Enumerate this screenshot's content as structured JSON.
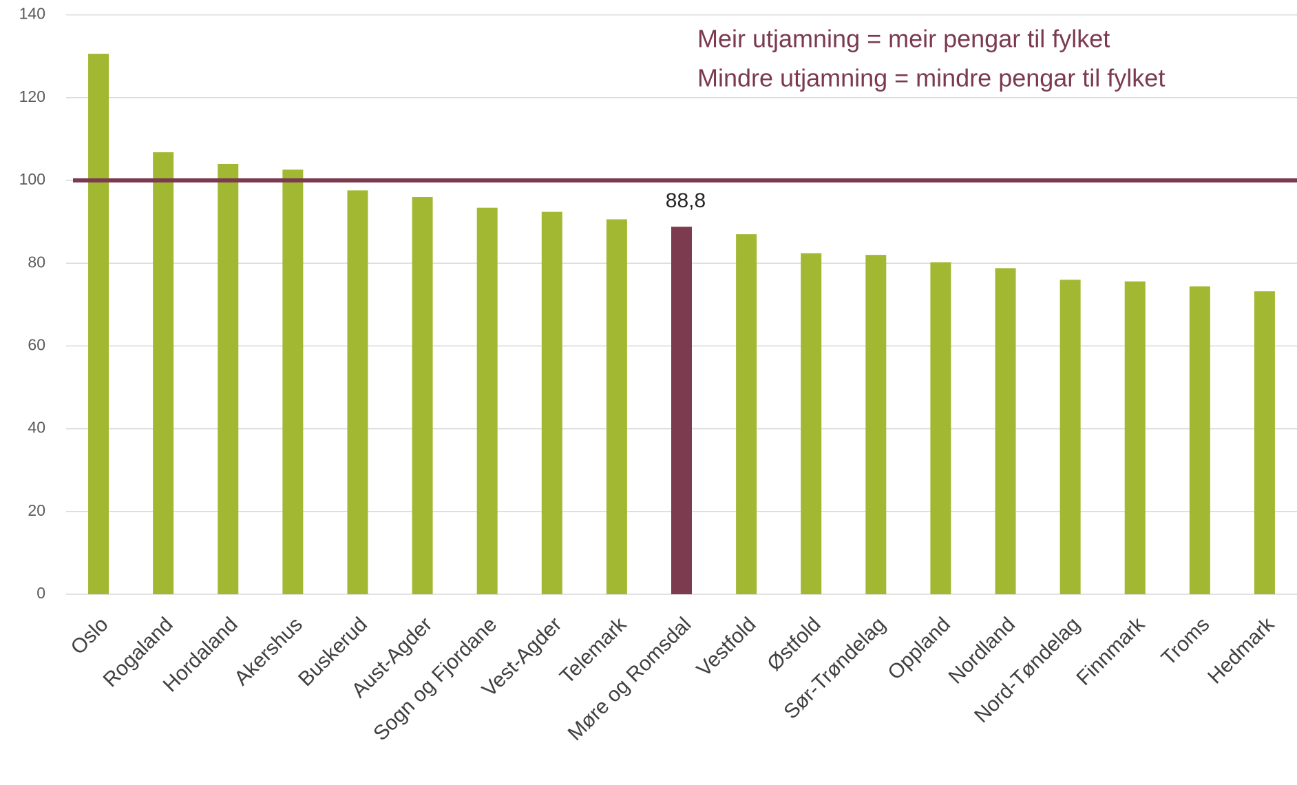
{
  "chart_data": {
    "type": "bar",
    "annotations": [
      "Meir utjamning = meir pengar til fylket",
      "Mindre utjamning = mindre pengar til fylket"
    ],
    "categories": [
      "Oslo",
      "Rogaland",
      "Hordaland",
      "Akershus",
      "Buskerud",
      "Aust-Agder",
      "Sogn og Fjordane",
      "Vest-Agder",
      "Telemark",
      "Møre og Romsdal",
      "Vestfold",
      "Østfold",
      "Sør-Trøndelag",
      "Oppland",
      "Nordland",
      "Nord-Tøndelag",
      "Finnmark",
      "Troms",
      "Hedmark"
    ],
    "values": [
      130.6,
      106.8,
      104,
      102.6,
      97.6,
      96,
      93.4,
      92.4,
      90.6,
      88.8,
      87,
      82.4,
      82,
      80.2,
      78.8,
      76,
      75.6,
      74.4,
      73.2
    ],
    "value_labels": [
      null,
      null,
      null,
      null,
      null,
      null,
      null,
      null,
      null,
      "88,8",
      null,
      null,
      null,
      null,
      null,
      null,
      null,
      null,
      null
    ],
    "colors": [
      "#a2b832",
      "#a2b832",
      "#a2b832",
      "#a2b832",
      "#a2b832",
      "#a2b832",
      "#a2b832",
      "#a2b832",
      "#a2b832",
      "#7d3b4f",
      "#a2b832",
      "#a2b832",
      "#a2b832",
      "#a2b832",
      "#a2b832",
      "#a2b832",
      "#a2b832",
      "#a2b832",
      "#a2b832"
    ],
    "reference_line": {
      "value": 100,
      "color": "#7b3a4f"
    },
    "ylim": [
      0,
      140
    ],
    "yticks": [
      0,
      20,
      40,
      60,
      80,
      100,
      120,
      140
    ],
    "grid": true
  }
}
